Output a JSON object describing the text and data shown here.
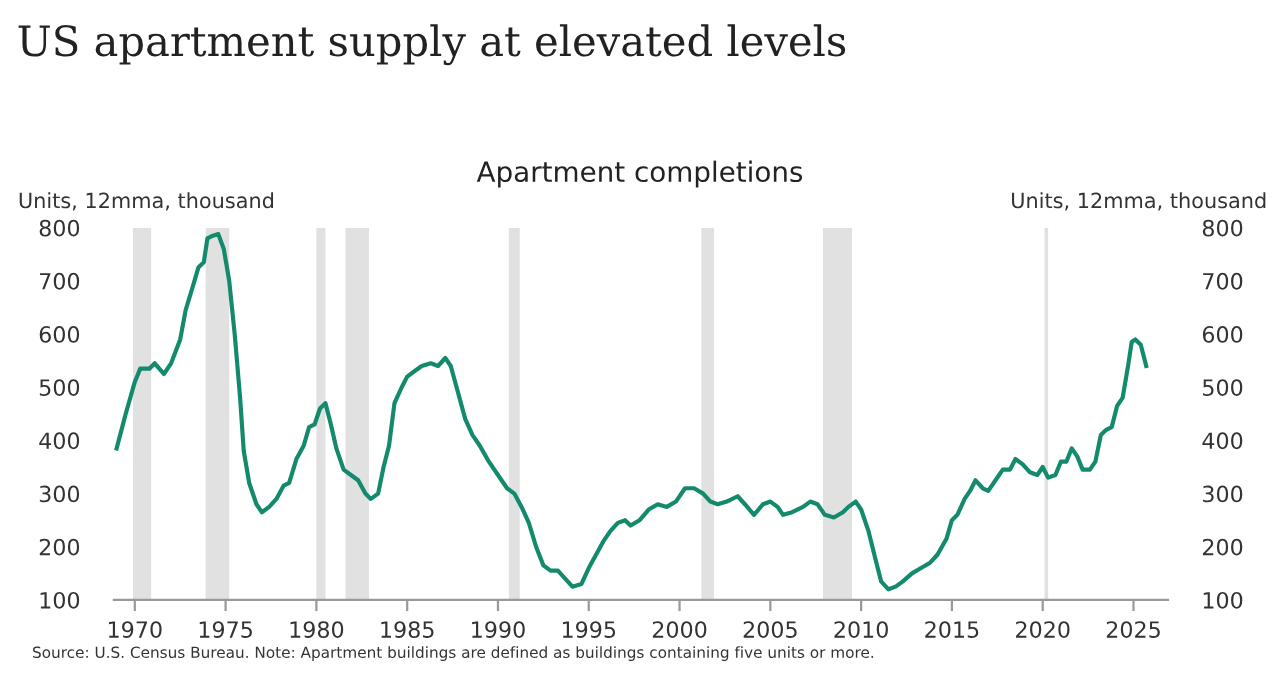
{
  "chart_data": {
    "type": "line",
    "title": "US apartment supply at elevated levels",
    "subtitle": "Apartment completions",
    "ylabel": "Units, 12mma, thousand",
    "y2label": "Units, 12mma, thousand",
    "annotations": [
      "Source: U.S. Census Bureau. Note: Apartment buildings are defined as buildings containing five units or more."
    ],
    "xlim": [
      1968.85,
      2026.9
    ],
    "xticks": [
      1970,
      1975,
      1980,
      1985,
      1990,
      1995,
      2000,
      2005,
      2010,
      2015,
      2020,
      2025
    ],
    "ylim": [
      100,
      800
    ],
    "yticks": [
      100,
      200,
      300,
      400,
      500,
      600,
      700,
      800
    ],
    "y2lim": [
      100,
      800
    ],
    "y2ticks": [
      100,
      200,
      300,
      400,
      500,
      600,
      700,
      800
    ],
    "grid": false,
    "marker": "none",
    "line_style": "solid",
    "bands": [
      {
        "axis": "x",
        "from": 1969.9,
        "to": 1970.9,
        "color": "#e0e1e0"
      },
      {
        "axis": "x",
        "from": 1973.9,
        "to": 1975.2,
        "color": "#e0e1e0"
      },
      {
        "axis": "x",
        "from": 1980.0,
        "to": 1980.5,
        "color": "#e0e1e0"
      },
      {
        "axis": "x",
        "from": 1981.6,
        "to": 1982.9,
        "color": "#e0e1e0"
      },
      {
        "axis": "x",
        "from": 1990.6,
        "to": 1991.2,
        "color": "#e0e1e0"
      },
      {
        "axis": "x",
        "from": 2001.2,
        "to": 2001.9,
        "color": "#e0e1e0"
      },
      {
        "axis": "x",
        "from": 2007.9,
        "to": 2009.5,
        "color": "#e0e1e0"
      },
      {
        "axis": "x",
        "from": 2020.1,
        "to": 2020.3,
        "color": "#e0e1e0"
      }
    ],
    "series": [
      {
        "color": "#138a6c",
        "x": [
          1969.0,
          1969.5,
          1970.0,
          1970.3,
          1970.8,
          1971.1,
          1971.6,
          1972.0,
          1972.5,
          1972.8,
          1973.2,
          1973.5,
          1973.8,
          1974.0,
          1974.3,
          1974.6,
          1974.9,
          1975.2,
          1975.5,
          1975.8,
          1976.0,
          1976.3,
          1976.7,
          1977.0,
          1977.4,
          1977.8,
          1978.2,
          1978.5,
          1978.9,
          1979.3,
          1979.6,
          1979.9,
          1980.2,
          1980.5,
          1980.8,
          1981.1,
          1981.5,
          1981.9,
          1982.3,
          1982.7,
          1983.0,
          1983.4,
          1983.7,
          1984.0,
          1984.3,
          1984.7,
          1985.0,
          1985.4,
          1985.8,
          1986.3,
          1986.7,
          1987.1,
          1987.4,
          1987.8,
          1988.2,
          1988.6,
          1989.0,
          1989.5,
          1990.0,
          1990.5,
          1990.9,
          1991.3,
          1991.7,
          1992.1,
          1992.5,
          1992.9,
          1993.3,
          1993.7,
          1994.1,
          1994.6,
          1995.0,
          1995.4,
          1995.8,
          1996.2,
          1996.6,
          1997.0,
          1997.3,
          1997.8,
          1998.3,
          1998.8,
          1999.3,
          1999.8,
          2000.3,
          2000.8,
          2001.3,
          2001.7,
          2002.1,
          2002.6,
          2003.2,
          2003.6,
          2004.1,
          2004.6,
          2005.0,
          2005.4,
          2005.7,
          2006.2,
          2006.8,
          2007.2,
          2007.6,
          2008.0,
          2008.5,
          2009.0,
          2009.3,
          2009.7,
          2010.0,
          2010.4,
          2010.8,
          2011.1,
          2011.5,
          2011.9,
          2012.3,
          2012.8,
          2013.3,
          2013.8,
          2014.2,
          2014.7,
          2015.0,
          2015.3,
          2015.7,
          2016.0,
          2016.3,
          2016.7,
          2017.0,
          2017.4,
          2017.8,
          2018.2,
          2018.5,
          2018.9,
          2019.3,
          2019.7,
          2020.0,
          2020.3,
          2020.7,
          2021.0,
          2021.3,
          2021.6,
          2021.9,
          2022.2,
          2022.6,
          2022.9,
          2023.2,
          2023.5,
          2023.8,
          2024.1,
          2024.4,
          2024.7,
          2024.9,
          2025.1,
          2025.4,
          2025.7
        ],
        "values": [
          385,
          450,
          510,
          535,
          535,
          545,
          525,
          545,
          590,
          645,
          690,
          725,
          735,
          780,
          785,
          788,
          760,
          700,
          600,
          480,
          380,
          320,
          280,
          265,
          275,
          290,
          315,
          320,
          365,
          390,
          425,
          430,
          460,
          470,
          430,
          385,
          345,
          335,
          325,
          300,
          290,
          300,
          350,
          390,
          470,
          500,
          520,
          530,
          540,
          545,
          540,
          555,
          540,
          490,
          440,
          410,
          390,
          360,
          335,
          310,
          300,
          275,
          245,
          200,
          165,
          155,
          155,
          140,
          125,
          130,
          160,
          185,
          210,
          230,
          245,
          250,
          240,
          250,
          270,
          280,
          275,
          285,
          310,
          310,
          300,
          285,
          280,
          285,
          295,
          280,
          260,
          280,
          285,
          275,
          260,
          265,
          275,
          285,
          280,
          260,
          255,
          265,
          275,
          285,
          270,
          230,
          175,
          135,
          120,
          125,
          135,
          150,
          160,
          170,
          185,
          215,
          250,
          260,
          290,
          305,
          325,
          310,
          305,
          325,
          345,
          345,
          365,
          355,
          340,
          335,
          350,
          330,
          335,
          360,
          360,
          385,
          370,
          345,
          345,
          360,
          410,
          420,
          425,
          465,
          480,
          540,
          585,
          590,
          580,
          540
        ]
      }
    ]
  }
}
